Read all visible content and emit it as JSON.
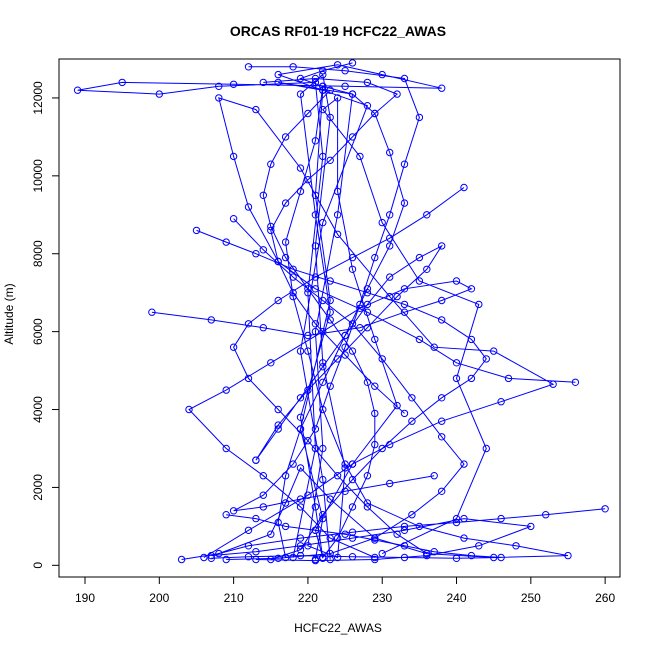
{
  "chart_data": {
    "type": "line",
    "title": "ORCAS RF01-19 HCFC22_AWAS",
    "xlabel": "HCFC22_AWAS",
    "ylabel": "Altitude (m)",
    "xlim": [
      186.5,
      262
    ],
    "ylim": [
      -300,
      13000
    ],
    "x_ticks": [
      190,
      200,
      210,
      220,
      230,
      240,
      250,
      260
    ],
    "y_ticks": [
      0,
      2000,
      4000,
      6000,
      8000,
      10000,
      12000
    ],
    "series_color": "#0000ff",
    "marker": "open-circle",
    "series": [
      {
        "name": "",
        "points": [
          [
            221,
            150
          ],
          [
            222,
            1200
          ],
          [
            219,
            3500
          ],
          [
            223,
            6800
          ],
          [
            221,
            9500
          ],
          [
            222,
            12200
          ],
          [
            216,
            12400
          ],
          [
            226,
            12100
          ],
          [
            224,
            9000
          ],
          [
            221,
            6000
          ],
          [
            222,
            3000
          ],
          [
            220,
            500
          ],
          [
            224,
            200
          ],
          [
            225,
            2500
          ],
          [
            222,
            5200
          ],
          [
            221,
            8200
          ],
          [
            223,
            11500
          ],
          [
            222,
            12600
          ],
          [
            219,
            12100
          ],
          [
            221,
            9000
          ],
          [
            223,
            6500
          ],
          [
            219,
            3800
          ],
          [
            221,
            1500
          ],
          [
            222,
            180
          ]
        ]
      },
      {
        "name": "",
        "points": [
          [
            218,
            200
          ],
          [
            221,
            3000
          ],
          [
            220,
            7000
          ],
          [
            222,
            10500
          ],
          [
            221,
            12400
          ],
          [
            208,
            12300
          ],
          [
            200,
            12100
          ],
          [
            189,
            12200
          ],
          [
            195,
            12400
          ],
          [
            210,
            12350
          ],
          [
            225,
            12300
          ],
          [
            238,
            12250
          ],
          [
            230,
            12600
          ],
          [
            224,
            12850
          ],
          [
            216,
            12600
          ],
          [
            222,
            12200
          ],
          [
            228,
            11800
          ],
          [
            222,
            8800
          ],
          [
            219,
            5500
          ],
          [
            222,
            2200
          ],
          [
            223,
            150
          ]
        ]
      },
      {
        "name": "",
        "points": [
          [
            230,
            300
          ],
          [
            240,
            1200
          ],
          [
            244,
            3000
          ],
          [
            240,
            4800
          ],
          [
            243,
            6700
          ],
          [
            235,
            7300
          ],
          [
            230,
            8800
          ],
          [
            227,
            10500
          ],
          [
            222,
            11700
          ],
          [
            224,
            12000
          ],
          [
            224,
            9600
          ],
          [
            226,
            7600
          ],
          [
            229,
            5800
          ],
          [
            232,
            4100
          ],
          [
            226,
            2600
          ],
          [
            221,
            900
          ],
          [
            222,
            200
          ]
        ]
      },
      {
        "name": "",
        "points": [
          [
            203,
            150
          ],
          [
            208,
            300
          ],
          [
            215,
            800
          ],
          [
            217,
            1600
          ],
          [
            219,
            2500
          ],
          [
            223,
            1700
          ],
          [
            229,
            700
          ],
          [
            236,
            300
          ],
          [
            245,
            200
          ],
          [
            255,
            250
          ],
          [
            248,
            500
          ],
          [
            241,
            700
          ],
          [
            235,
            1000
          ],
          [
            228,
            1600
          ],
          [
            225,
            2600
          ],
          [
            222,
            4000
          ],
          [
            220,
            5500
          ],
          [
            218,
            6900
          ],
          [
            217,
            8300
          ],
          [
            219,
            9600
          ],
          [
            221,
            10900
          ],
          [
            222,
            12300
          ]
        ]
      },
      {
        "name": "",
        "points": [
          [
            256,
            4700
          ],
          [
            247,
            4800
          ],
          [
            240,
            5200
          ],
          [
            235,
            5800
          ],
          [
            228,
            6500
          ],
          [
            221,
            7100
          ],
          [
            216,
            7800
          ],
          [
            212,
            9200
          ],
          [
            210,
            10500
          ],
          [
            208,
            12000
          ],
          [
            213,
            11700
          ],
          [
            219,
            10200
          ],
          [
            224,
            8500
          ],
          [
            231,
            6900
          ],
          [
            237,
            5600
          ],
          [
            245,
            5500
          ],
          [
            253,
            4650
          ],
          [
            246,
            4200
          ],
          [
            238,
            3700
          ],
          [
            231,
            3100
          ],
          [
            226,
            2600
          ],
          [
            220,
            1800
          ],
          [
            212,
            900
          ],
          [
            206,
            200
          ]
        ]
      },
      {
        "name": "",
        "points": [
          [
            199,
            6500
          ],
          [
            207,
            6300
          ],
          [
            214,
            6100
          ],
          [
            220,
            5900
          ],
          [
            227,
            6100
          ],
          [
            233,
            6500
          ],
          [
            238,
            6800
          ],
          [
            242,
            7100
          ],
          [
            240,
            7300
          ],
          [
            233,
            7100
          ],
          [
            227,
            6600
          ],
          [
            222,
            6000
          ],
          [
            215,
            5200
          ],
          [
            209,
            4500
          ],
          [
            204,
            4000
          ],
          [
            209,
            3000
          ],
          [
            214,
            2300
          ],
          [
            219,
            1500
          ],
          [
            223,
            700
          ],
          [
            229,
            200
          ]
        ]
      },
      {
        "name": "",
        "points": [
          [
            260,
            1450
          ],
          [
            252,
            1300
          ],
          [
            246,
            1200
          ],
          [
            240,
            1100
          ],
          [
            233,
            1000
          ],
          [
            226,
            850
          ],
          [
            219,
            700
          ],
          [
            212,
            500
          ],
          [
            207,
            250
          ],
          [
            213,
            350
          ],
          [
            219,
            500
          ],
          [
            226,
            700
          ],
          [
            233,
            900
          ],
          [
            241,
            1200
          ],
          [
            250,
            1000
          ],
          [
            243,
            500
          ],
          [
            236,
            250
          ],
          [
            229,
            150
          ],
          [
            221,
            120
          ],
          [
            213,
            150
          ]
        ]
      },
      {
        "name": "",
        "points": [
          [
            237,
            2300
          ],
          [
            231,
            2100
          ],
          [
            225,
            1900
          ],
          [
            219,
            1700
          ],
          [
            214,
            1500
          ],
          [
            210,
            1400
          ],
          [
            214,
            1800
          ],
          [
            218,
            2600
          ],
          [
            221,
            3500
          ],
          [
            223,
            4600
          ],
          [
            225,
            5600
          ],
          [
            227,
            6700
          ],
          [
            229,
            7900
          ],
          [
            231,
            9000
          ],
          [
            233,
            10300
          ],
          [
            235,
            11500
          ],
          [
            233,
            12500
          ],
          [
            225,
            12700
          ],
          [
            218,
            12800
          ],
          [
            212,
            12800
          ]
        ]
      },
      {
        "name": "",
        "points": [
          [
            210,
            8900
          ],
          [
            214,
            8100
          ],
          [
            218,
            7400
          ],
          [
            222,
            6800
          ],
          [
            226,
            6200
          ],
          [
            230,
            5300
          ],
          [
            234,
            4300
          ],
          [
            238,
            3300
          ],
          [
            241,
            2600
          ],
          [
            238,
            1900
          ],
          [
            234,
            1300
          ],
          [
            229,
            700
          ],
          [
            223,
            300
          ],
          [
            216,
            180
          ],
          [
            209,
            150
          ]
        ]
      },
      {
        "name": "",
        "points": [
          [
            241,
            9700
          ],
          [
            236,
            9000
          ],
          [
            231,
            8400
          ],
          [
            226,
            7900
          ],
          [
            221,
            7400
          ],
          [
            216,
            6800
          ],
          [
            212,
            6200
          ],
          [
            210,
            5600
          ],
          [
            212,
            4800
          ],
          [
            216,
            4000
          ],
          [
            220,
            3200
          ],
          [
            224,
            2300
          ],
          [
            228,
            1500
          ],
          [
            232,
            800
          ],
          [
            236,
            300
          ]
        ]
      },
      {
        "name": "",
        "points": [
          [
            233,
            3900
          ],
          [
            229,
            4600
          ],
          [
            225,
            5400
          ],
          [
            221,
            6200
          ],
          [
            218,
            7000
          ],
          [
            216,
            7800
          ],
          [
            215,
            8600
          ],
          [
            217,
            9300
          ],
          [
            220,
            9900
          ],
          [
            223,
            10400
          ],
          [
            226,
            11000
          ],
          [
            229,
            11600
          ],
          [
            232,
            12100
          ],
          [
            228,
            12400
          ],
          [
            221,
            12500
          ],
          [
            214,
            12400
          ]
        ]
      },
      {
        "name": "",
        "points": [
          [
            205,
            8600
          ],
          [
            209,
            8300
          ],
          [
            213,
            8000
          ],
          [
            218,
            7600
          ],
          [
            223,
            7300
          ],
          [
            228,
            7000
          ],
          [
            233,
            6700
          ],
          [
            238,
            6300
          ],
          [
            242,
            5800
          ],
          [
            244,
            5300
          ],
          [
            242,
            4800
          ],
          [
            238,
            4300
          ],
          [
            234,
            3700
          ],
          [
            230,
            3000
          ],
          [
            226,
            2200
          ],
          [
            222,
            1300
          ],
          [
            219,
            400
          ],
          [
            215,
            150
          ]
        ]
      },
      {
        "name": "",
        "points": [
          [
            209,
            1300
          ],
          [
            213,
            1200
          ],
          [
            217,
            1000
          ],
          [
            221,
            900
          ],
          [
            225,
            800
          ],
          [
            229,
            650
          ],
          [
            233,
            500
          ],
          [
            237,
            350
          ],
          [
            242,
            250
          ],
          [
            246,
            200
          ],
          [
            240,
            180
          ],
          [
            233,
            200
          ],
          [
            226,
            220
          ],
          [
            219,
            250
          ],
          [
            212,
            220
          ],
          [
            207,
            180
          ]
        ]
      },
      {
        "name": "",
        "points": [
          [
            226,
            12900
          ],
          [
            222,
            12700
          ],
          [
            219,
            12500
          ],
          [
            222,
            12300
          ],
          [
            226,
            12100
          ],
          [
            229,
            11600
          ],
          [
            231,
            10600
          ],
          [
            233,
            9300
          ],
          [
            231,
            8200
          ],
          [
            228,
            7100
          ],
          [
            225,
            5900
          ],
          [
            222,
            4700
          ],
          [
            219,
            3500
          ],
          [
            217,
            2300
          ],
          [
            216,
            1100
          ],
          [
            217,
            200
          ]
        ]
      },
      {
        "name": "",
        "points": [
          [
            213,
            2700
          ],
          [
            216,
            3500
          ],
          [
            219,
            4300
          ],
          [
            222,
            5100
          ],
          [
            225,
            5900
          ],
          [
            228,
            6700
          ],
          [
            231,
            7400
          ],
          [
            235,
            7900
          ],
          [
            238,
            8200
          ],
          [
            236,
            7600
          ],
          [
            232,
            6900
          ],
          [
            228,
            6100
          ],
          [
            224,
            5300
          ],
          [
            220,
            4500
          ],
          [
            216,
            3600
          ],
          [
            213,
            2700
          ]
        ]
      },
      {
        "name": "",
        "points": [
          [
            223,
            12200
          ],
          [
            220,
            11600
          ],
          [
            217,
            11000
          ],
          [
            215,
            10300
          ],
          [
            214,
            9500
          ],
          [
            215,
            8700
          ],
          [
            217,
            7900
          ],
          [
            220,
            7100
          ],
          [
            223,
            6300
          ],
          [
            226,
            5500
          ],
          [
            228,
            4700
          ],
          [
            229,
            3900
          ],
          [
            229,
            3100
          ],
          [
            228,
            2300
          ],
          [
            226,
            1500
          ],
          [
            224,
            700
          ],
          [
            222,
            200
          ]
        ]
      }
    ]
  }
}
